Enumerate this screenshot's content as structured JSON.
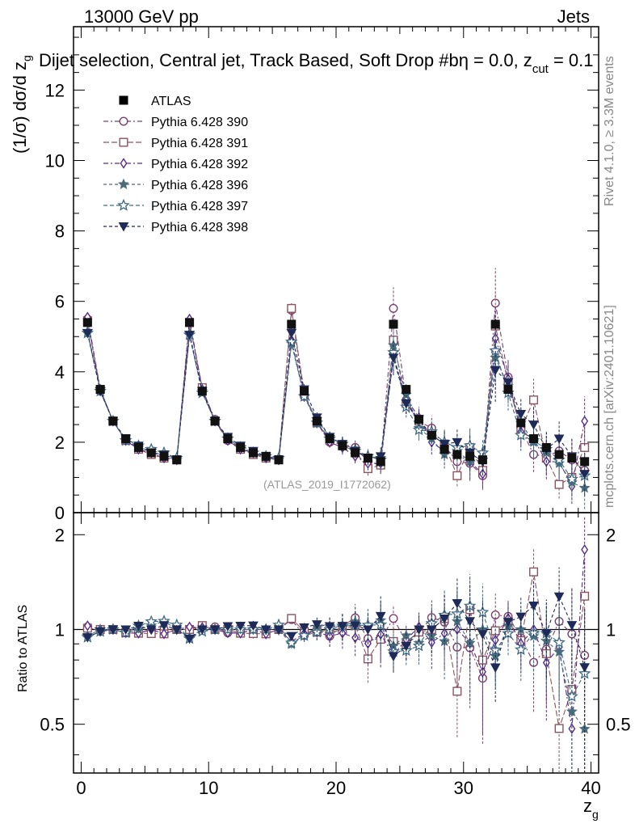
{
  "header": {
    "energy": "13000 GeV pp",
    "process": "Jets"
  },
  "side": {
    "rivet": "Rivet 4.1.0, ≥ 3.3M events",
    "mcplots": "mcplots.cern.ch [arXiv:2401.10621]"
  },
  "chart_data": {
    "type": "scatter",
    "title": "Dijet selection, Central jet, Track Based, Soft Drop #b",
    "title_extra": "η = 0.0, z",
    "title_sub": "cut",
    "title_tail": " = 0.1",
    "watermark": "(ATLAS_2019_I1772062)",
    "xlabel": "z",
    "xlabel_sub": "g",
    "ylabel": "(1/σ) dσ/d z",
    "ylabel_sub": "g",
    "ratio_ylabel": "Ratio to ATLAS",
    "xlim": [
      -0.6,
      40.6
    ],
    "ylim": [
      0,
      13.8
    ],
    "ratio_ylim": [
      0.35,
      2.35
    ],
    "x_ticks": [
      0,
      10,
      20,
      30,
      40
    ],
    "x_tick_labels": [
      "0",
      "10",
      "20",
      "30",
      "40"
    ],
    "y_ticks": [
      0,
      2,
      4,
      6,
      8,
      10,
      12
    ],
    "y_tick_labels": [
      "0",
      "2",
      "4",
      "6",
      "8",
      "10",
      "12"
    ],
    "ratio_ticks": [
      0.5,
      1,
      2
    ],
    "ratio_tick_labels": [
      "0.5",
      "1",
      "2"
    ],
    "x": [
      0.5,
      1.5,
      2.5,
      3.5,
      4.5,
      5.5,
      6.5,
      7.5,
      8.5,
      9.5,
      10.5,
      11.5,
      12.5,
      13.5,
      14.5,
      15.5,
      16.5,
      17.5,
      18.5,
      19.5,
      20.5,
      21.5,
      22.5,
      23.5,
      24.5,
      25.5,
      26.5,
      27.5,
      28.5,
      29.5,
      30.5,
      31.5,
      32.5,
      33.5,
      34.5,
      35.5,
      36.5,
      37.5,
      38.5,
      39.5
    ],
    "data": {
      "name": "ATLAS",
      "values": [
        5.4,
        3.5,
        2.6,
        2.1,
        1.85,
        1.7,
        1.6,
        1.5,
        5.4,
        3.45,
        2.6,
        2.1,
        1.85,
        1.7,
        1.6,
        1.5,
        5.35,
        3.45,
        2.6,
        2.1,
        1.9,
        1.7,
        1.55,
        1.45,
        5.35,
        3.5,
        2.65,
        2.2,
        1.8,
        1.65,
        1.6,
        1.5,
        5.35,
        3.5,
        2.55,
        2.1,
        1.85,
        1.65,
        1.55,
        1.45
      ],
      "errors": [
        0.08,
        0.06,
        0.05,
        0.04,
        0.04,
        0.04,
        0.04,
        0.04,
        0.09,
        0.06,
        0.05,
        0.04,
        0.04,
        0.04,
        0.04,
        0.04,
        0.1,
        0.07,
        0.06,
        0.05,
        0.05,
        0.05,
        0.05,
        0.05,
        0.12,
        0.08,
        0.07,
        0.06,
        0.06,
        0.06,
        0.06,
        0.06,
        0.15,
        0.1,
        0.09,
        0.08,
        0.08,
        0.08,
        0.08,
        0.08
      ]
    },
    "series": [
      {
        "name": "Pythia 6.428 390",
        "color": "#7b3f6e",
        "marker": "circle-open",
        "dash": "6,3,2,3",
        "values": [
          5.5,
          3.45,
          2.6,
          2.05,
          1.8,
          1.7,
          1.6,
          1.5,
          5.4,
          3.5,
          2.65,
          2.05,
          1.8,
          1.7,
          1.55,
          1.5,
          5.75,
          3.3,
          2.6,
          2.0,
          1.95,
          1.85,
          1.45,
          1.35,
          5.8,
          3.2,
          2.6,
          2.4,
          1.9,
          1.45,
          1.4,
          1.05,
          5.95,
          3.85,
          2.4,
          1.65,
          1.6,
          1.75,
          1.5,
          1.2
        ],
        "errors": [
          0.08,
          0.06,
          0.05,
          0.05,
          0.05,
          0.05,
          0.05,
          0.05,
          0.1,
          0.07,
          0.06,
          0.06,
          0.06,
          0.06,
          0.06,
          0.06,
          0.15,
          0.15,
          0.15,
          0.15,
          0.2,
          0.2,
          0.2,
          0.25,
          0.6,
          0.3,
          0.3,
          0.35,
          0.4,
          0.4,
          0.5,
          0.4,
          1.0,
          0.5,
          0.45,
          0.5,
          0.5,
          0.6,
          0.6,
          0.5
        ]
      },
      {
        "name": "Pythia 6.428 391",
        "color": "#8a5560",
        "marker": "square-open",
        "dash": "7,3",
        "values": [
          5.45,
          3.5,
          2.6,
          2.05,
          1.8,
          1.65,
          1.55,
          1.5,
          5.4,
          3.55,
          2.6,
          2.1,
          1.8,
          1.65,
          1.55,
          1.5,
          5.8,
          3.4,
          2.55,
          2.05,
          1.9,
          1.75,
          1.25,
          1.35,
          4.9,
          3.1,
          2.6,
          2.2,
          1.95,
          1.05,
          1.85,
          1.2,
          5.3,
          3.7,
          2.35,
          3.2,
          1.55,
          0.8,
          1.0,
          1.85
        ],
        "errors": [
          0.08,
          0.06,
          0.05,
          0.05,
          0.05,
          0.05,
          0.05,
          0.05,
          0.1,
          0.07,
          0.06,
          0.06,
          0.06,
          0.06,
          0.06,
          0.06,
          0.15,
          0.15,
          0.15,
          0.15,
          0.2,
          0.2,
          0.2,
          0.25,
          0.5,
          0.3,
          0.3,
          0.35,
          0.4,
          0.3,
          0.5,
          0.4,
          0.9,
          0.5,
          0.45,
          0.6,
          0.5,
          0.4,
          0.5,
          0.6
        ]
      },
      {
        "name": "Pythia 6.428 392",
        "color": "#5a2a8a",
        "marker": "diamond-open",
        "dash": "6,3,2,3",
        "values": [
          5.55,
          3.5,
          2.6,
          2.05,
          1.8,
          1.7,
          1.55,
          1.5,
          5.5,
          3.5,
          2.6,
          2.05,
          1.8,
          1.7,
          1.55,
          1.5,
          4.9,
          3.35,
          2.55,
          2.0,
          1.85,
          1.6,
          1.4,
          1.4,
          4.45,
          3.25,
          2.7,
          2.0,
          1.75,
          1.65,
          1.45,
          1.1,
          4.95,
          3.8,
          2.3,
          2.1,
          1.45,
          1.45,
          0.75,
          2.6
        ],
        "errors": [
          0.08,
          0.06,
          0.05,
          0.05,
          0.05,
          0.05,
          0.05,
          0.05,
          0.1,
          0.07,
          0.06,
          0.06,
          0.06,
          0.06,
          0.06,
          0.06,
          0.15,
          0.15,
          0.15,
          0.15,
          0.2,
          0.2,
          0.2,
          0.25,
          0.5,
          0.3,
          0.3,
          0.35,
          0.4,
          0.4,
          0.5,
          0.4,
          0.9,
          0.5,
          0.45,
          0.5,
          0.5,
          0.5,
          0.5,
          0.7
        ]
      },
      {
        "name": "Pythia 6.428 396",
        "color": "#4a6c7a",
        "marker": "star-filled",
        "dash": "4,3",
        "values": [
          5.15,
          3.5,
          2.6,
          2.05,
          1.85,
          1.75,
          1.7,
          1.5,
          5.1,
          3.45,
          2.6,
          2.1,
          1.85,
          1.7,
          1.6,
          1.5,
          4.8,
          3.3,
          2.65,
          2.15,
          1.95,
          1.8,
          1.6,
          1.55,
          4.75,
          3.35,
          2.4,
          2.1,
          1.65,
          1.75,
          1.45,
          1.5,
          4.4,
          3.6,
          2.55,
          2.0,
          1.7,
          1.4,
          0.85,
          0.7
        ],
        "errors": [
          0.08,
          0.06,
          0.05,
          0.05,
          0.05,
          0.05,
          0.05,
          0.05,
          0.1,
          0.07,
          0.06,
          0.06,
          0.06,
          0.06,
          0.06,
          0.06,
          0.15,
          0.15,
          0.15,
          0.15,
          0.2,
          0.2,
          0.2,
          0.25,
          0.5,
          0.3,
          0.3,
          0.35,
          0.4,
          0.4,
          0.5,
          0.4,
          0.9,
          0.5,
          0.45,
          0.5,
          0.5,
          0.5,
          0.5,
          0.6
        ]
      },
      {
        "name": "Pythia 6.428 397",
        "color": "#3e6a84",
        "marker": "star-open",
        "dash": "5,3",
        "values": [
          5.1,
          3.45,
          2.6,
          2.05,
          1.9,
          1.8,
          1.7,
          1.55,
          5.05,
          3.4,
          2.6,
          2.1,
          1.85,
          1.7,
          1.6,
          1.55,
          4.85,
          3.3,
          2.55,
          2.1,
          1.95,
          1.75,
          1.6,
          1.5,
          4.55,
          3.0,
          2.35,
          2.3,
          2.0,
          1.85,
          1.9,
          1.7,
          4.6,
          3.4,
          2.2,
          2.05,
          1.8,
          1.5,
          0.95,
          1.05
        ],
        "errors": [
          0.08,
          0.06,
          0.05,
          0.05,
          0.05,
          0.05,
          0.05,
          0.05,
          0.1,
          0.07,
          0.06,
          0.06,
          0.06,
          0.06,
          0.06,
          0.06,
          0.15,
          0.15,
          0.15,
          0.15,
          0.2,
          0.2,
          0.2,
          0.25,
          0.5,
          0.3,
          0.3,
          0.35,
          0.4,
          0.4,
          0.5,
          0.4,
          0.9,
          0.5,
          0.45,
          0.5,
          0.5,
          0.5,
          0.5,
          0.6
        ]
      },
      {
        "name": "Pythia 6.428 398",
        "color": "#1e2a58",
        "marker": "triangle-down-filled",
        "dash": "4,3",
        "values": [
          5.1,
          3.45,
          2.6,
          2.1,
          1.9,
          1.7,
          1.65,
          1.5,
          5.05,
          3.45,
          2.6,
          2.15,
          1.9,
          1.75,
          1.6,
          1.5,
          5.1,
          3.5,
          2.7,
          2.15,
          1.95,
          1.75,
          1.55,
          1.6,
          4.4,
          3.1,
          2.65,
          2.2,
          1.95,
          2.0,
          1.7,
          1.45,
          4.05,
          3.7,
          2.8,
          2.5,
          1.8,
          2.1,
          1.6,
          1.1
        ],
        "errors": [
          0.08,
          0.06,
          0.05,
          0.05,
          0.05,
          0.05,
          0.05,
          0.05,
          0.1,
          0.07,
          0.06,
          0.06,
          0.06,
          0.06,
          0.06,
          0.06,
          0.15,
          0.15,
          0.15,
          0.15,
          0.2,
          0.2,
          0.2,
          0.25,
          0.5,
          0.3,
          0.3,
          0.35,
          0.4,
          0.4,
          0.5,
          0.4,
          0.9,
          0.5,
          0.45,
          0.5,
          0.5,
          0.5,
          0.5,
          0.6
        ]
      }
    ]
  }
}
